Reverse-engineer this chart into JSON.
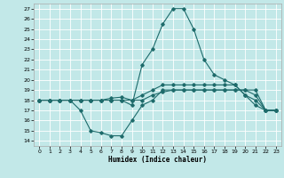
{
  "xlabel": "Humidex (Indice chaleur)",
  "xlim": [
    -0.5,
    23.5
  ],
  "ylim": [
    13.5,
    27.5
  ],
  "xticks": [
    0,
    1,
    2,
    3,
    4,
    5,
    6,
    7,
    8,
    9,
    10,
    11,
    12,
    13,
    14,
    15,
    16,
    17,
    18,
    19,
    20,
    21,
    22,
    23
  ],
  "yticks": [
    14,
    15,
    16,
    17,
    18,
    19,
    20,
    21,
    22,
    23,
    24,
    25,
    26,
    27
  ],
  "bg_color": "#c2e8e8",
  "line_color": "#1e6b6b",
  "grid_color": "#ffffff",
  "lines": [
    {
      "x": [
        0,
        1,
        2,
        3,
        4,
        5,
        6,
        7,
        8,
        9,
        10,
        11,
        12,
        13,
        14,
        15,
        16,
        17,
        18,
        19,
        20,
        21,
        22,
        23
      ],
      "y": [
        18,
        18,
        18,
        18,
        17,
        15,
        14.8,
        14.5,
        14.5,
        16,
        17.5,
        18,
        19,
        19,
        19,
        19,
        19,
        19,
        19,
        19,
        19,
        19,
        17,
        17
      ]
    },
    {
      "x": [
        0,
        1,
        2,
        3,
        4,
        5,
        6,
        7,
        8,
        9,
        10,
        11,
        12,
        13,
        14,
        15,
        16,
        17,
        18,
        19,
        20,
        21,
        22,
        23
      ],
      "y": [
        18,
        18,
        18,
        18,
        18,
        18,
        18,
        18,
        18,
        18,
        18,
        18.5,
        18.8,
        19,
        19,
        19,
        19,
        19,
        19,
        19,
        19,
        18.5,
        17,
        17
      ]
    },
    {
      "x": [
        0,
        1,
        2,
        3,
        4,
        5,
        6,
        7,
        8,
        9,
        10,
        11,
        12,
        13,
        14,
        15,
        16,
        17,
        18,
        19,
        20,
        21,
        22,
        23
      ],
      "y": [
        18,
        18,
        18,
        18,
        18,
        18,
        18,
        18.2,
        18.3,
        18,
        18.5,
        19,
        19.5,
        19.5,
        19.5,
        19.5,
        19.5,
        19.5,
        19.5,
        19.5,
        18.5,
        18,
        17,
        17
      ]
    },
    {
      "x": [
        0,
        1,
        2,
        3,
        4,
        5,
        6,
        7,
        8,
        9,
        10,
        11,
        12,
        13,
        14,
        15,
        16,
        17,
        18,
        19,
        20,
        21,
        22,
        23
      ],
      "y": [
        18,
        18,
        18,
        18,
        18,
        18,
        18,
        18,
        18,
        17.5,
        21.5,
        23,
        25.5,
        27,
        27,
        25,
        22,
        20.5,
        20,
        19.5,
        18.5,
        17.5,
        17,
        17
      ]
    }
  ]
}
